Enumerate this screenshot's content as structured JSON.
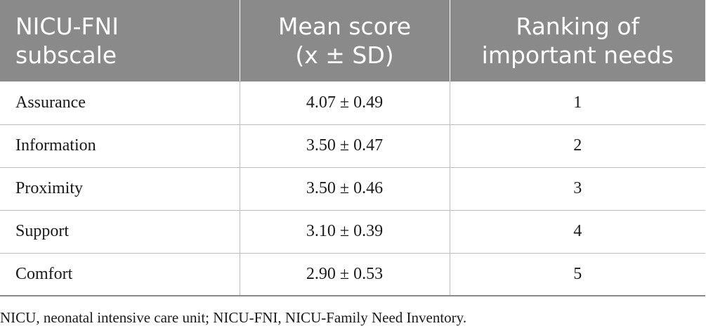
{
  "table": {
    "headers": [
      {
        "lines": [
          "NICU-FNI",
          "subscale"
        ]
      },
      {
        "lines": [
          "Mean score",
          "(x ± SD)"
        ]
      },
      {
        "lines": [
          "Ranking of",
          "important needs"
        ]
      }
    ],
    "rows": [
      {
        "subscale": "Assurance",
        "mean": "4.07 ± 0.49",
        "rank": "1"
      },
      {
        "subscale": "Information",
        "mean": "3.50 ± 0.47",
        "rank": "2"
      },
      {
        "subscale": "Proximity",
        "mean": "3.50 ± 0.46",
        "rank": "3"
      },
      {
        "subscale": "Support",
        "mean": "3.10 ± 0.39",
        "rank": "4"
      },
      {
        "subscale": "Comfort",
        "mean": "2.90 ± 0.53",
        "rank": "5"
      }
    ]
  },
  "footnote": "NICU, neonatal intensive care unit; NICU-FNI, NICU-Family Need Inventory."
}
